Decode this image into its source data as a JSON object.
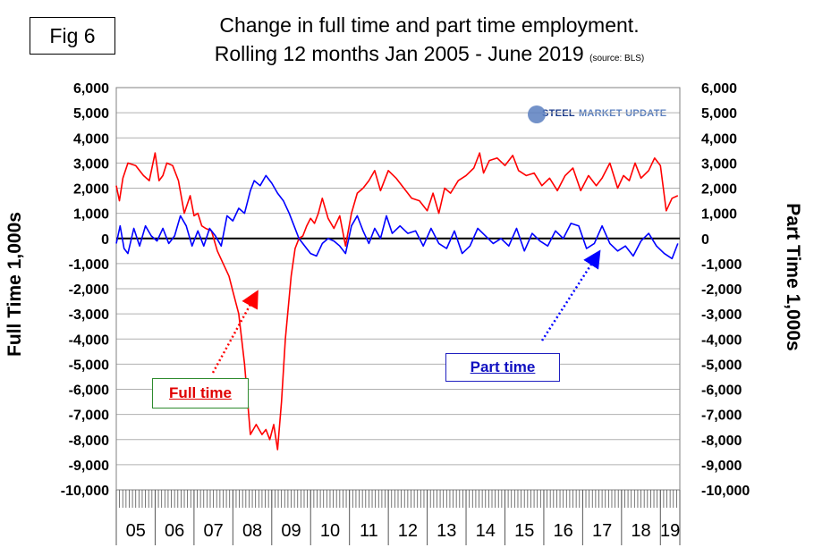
{
  "figure_label": "Fig 6",
  "title_line1": "Change in full time and part time employment.",
  "title_line2": "Rolling 12 months Jan 2005 - June 2019",
  "source_note": "(source: BLS)",
  "logo_text": {
    "steel": "STEEL",
    "market_update": "MARKET UPDATE"
  },
  "colors": {
    "full_time": "#ff0000",
    "part_time": "#0000ff",
    "grid": "#b0b0b0",
    "zero_line": "#000000"
  },
  "annotations": {
    "full_time": "Full time",
    "part_time": "Part time"
  },
  "chart_data": {
    "type": "line",
    "title": "Change in full time and part time employment. Rolling 12 months Jan 2005 - June 2019",
    "ylabel_left": "Full Time 1,000s",
    "ylabel_right": "Part Time 1,000s",
    "ylim": [
      -10000,
      6000
    ],
    "yticks": [
      6000,
      5000,
      4000,
      3000,
      2000,
      1000,
      0,
      -1000,
      -2000,
      -3000,
      -4000,
      -5000,
      -6000,
      -7000,
      -8000,
      -9000,
      -10000
    ],
    "ytick_labels": [
      "6,000",
      "5,000",
      "4,000",
      "3,000",
      "2,000",
      "1,000",
      "0",
      "-1,000",
      "-2,000",
      "-3,000",
      "-4,000",
      "-5,000",
      "-6,000",
      "-7,000",
      "-8,000",
      "-9,000",
      "-10,000"
    ],
    "x_range": [
      "2005-01",
      "2019-06"
    ],
    "year_labels": [
      "05",
      "06",
      "07",
      "08",
      "09",
      "10",
      "11",
      "12",
      "13",
      "14",
      "15",
      "16",
      "17",
      "18",
      "19"
    ],
    "grid": "horizontal",
    "series": [
      {
        "name": "Full time",
        "x": [
          2005.0,
          2005.08,
          2005.17,
          2005.3,
          2005.5,
          2005.7,
          2005.85,
          2006.0,
          2006.1,
          2006.2,
          2006.3,
          2006.45,
          2006.6,
          2006.75,
          2006.9,
          2007.0,
          2007.1,
          2007.2,
          2007.3,
          2007.45,
          2007.6,
          2007.75,
          2007.9,
          2008.0,
          2008.15,
          2008.3,
          2008.45,
          2008.6,
          2008.75,
          2008.85,
          2008.95,
          2009.05,
          2009.15,
          2009.25,
          2009.35,
          2009.5,
          2009.6,
          2009.7,
          2009.8,
          2009.9,
          2010.0,
          2010.1,
          2010.2,
          2010.3,
          2010.45,
          2010.6,
          2010.75,
          2010.9,
          2011.05,
          2011.2,
          2011.35,
          2011.5,
          2011.65,
          2011.8,
          2012.0,
          2012.2,
          2012.4,
          2012.6,
          2012.8,
          2013.0,
          2013.15,
          2013.3,
          2013.45,
          2013.6,
          2013.8,
          2014.0,
          2014.2,
          2014.35,
          2014.45,
          2014.6,
          2014.8,
          2015.0,
          2015.2,
          2015.35,
          2015.55,
          2015.75,
          2015.95,
          2016.15,
          2016.35,
          2016.55,
          2016.75,
          2016.95,
          2017.15,
          2017.35,
          2017.5,
          2017.7,
          2017.9,
          2018.05,
          2018.2,
          2018.35,
          2018.5,
          2018.7,
          2018.85,
          2019.0,
          2019.15,
          2019.3,
          2019.45
        ],
        "values": [
          2100,
          1500,
          2400,
          3000,
          2900,
          2500,
          2300,
          3400,
          2300,
          2500,
          3000,
          2900,
          2300,
          1000,
          1700,
          900,
          1000,
          500,
          400,
          300,
          -500,
          -1000,
          -1500,
          -2100,
          -3000,
          -5000,
          -7800,
          -7400,
          -7800,
          -7600,
          -8000,
          -7400,
          -8400,
          -6500,
          -4000,
          -1500,
          -400,
          0,
          100,
          500,
          800,
          600,
          1000,
          1600,
          800,
          400,
          900,
          -300,
          1000,
          1800,
          2000,
          2300,
          2700,
          1900,
          2700,
          2400,
          2000,
          1600,
          1500,
          1100,
          1800,
          1000,
          2000,
          1800,
          2300,
          2500,
          2800,
          3400,
          2600,
          3100,
          3200,
          2900,
          3300,
          2700,
          2500,
          2600,
          2100,
          2400,
          1900,
          2500,
          2800,
          1900,
          2500,
          2100,
          2400,
          3000,
          2000,
          2500,
          2300,
          3000,
          2400,
          2700,
          3200,
          2900,
          1100,
          1600,
          1700
        ]
      },
      {
        "name": "Part time",
        "x": [
          2005.0,
          2005.1,
          2005.2,
          2005.3,
          2005.45,
          2005.6,
          2005.75,
          2005.9,
          2006.05,
          2006.2,
          2006.35,
          2006.5,
          2006.65,
          2006.8,
          2006.95,
          2007.1,
          2007.25,
          2007.4,
          2007.55,
          2007.7,
          2007.85,
          2008.0,
          2008.15,
          2008.3,
          2008.45,
          2008.55,
          2008.7,
          2008.85,
          2009.0,
          2009.15,
          2009.3,
          2009.45,
          2009.55,
          2009.7,
          2009.85,
          2010.0,
          2010.15,
          2010.3,
          2010.45,
          2010.6,
          2010.75,
          2010.9,
          2011.05,
          2011.2,
          2011.35,
          2011.5,
          2011.65,
          2011.8,
          2011.95,
          2012.1,
          2012.3,
          2012.5,
          2012.7,
          2012.9,
          2013.1,
          2013.3,
          2013.5,
          2013.7,
          2013.9,
          2014.1,
          2014.3,
          2014.5,
          2014.7,
          2014.9,
          2015.1,
          2015.3,
          2015.5,
          2015.7,
          2015.9,
          2016.1,
          2016.3,
          2016.5,
          2016.7,
          2016.9,
          2017.1,
          2017.3,
          2017.5,
          2017.7,
          2017.9,
          2018.1,
          2018.3,
          2018.5,
          2018.7,
          2018.9,
          2019.1,
          2019.3,
          2019.45
        ],
        "values": [
          -200,
          500,
          -400,
          -600,
          400,
          -300,
          500,
          100,
          -100,
          400,
          -200,
          100,
          900,
          500,
          -300,
          300,
          -300,
          400,
          100,
          -300,
          900,
          700,
          1200,
          1000,
          1900,
          2300,
          2100,
          2500,
          2200,
          1800,
          1500,
          1000,
          600,
          0,
          -300,
          -600,
          -700,
          -200,
          0,
          -100,
          -300,
          -600,
          500,
          900,
          300,
          -200,
          400,
          0,
          900,
          200,
          500,
          200,
          300,
          -300,
          400,
          -200,
          -400,
          300,
          -600,
          -300,
          400,
          100,
          -200,
          0,
          -300,
          400,
          -500,
          200,
          -100,
          -300,
          300,
          0,
          600,
          500,
          -400,
          -200,
          500,
          -200,
          -500,
          -300,
          -700,
          -100,
          200,
          -300,
          -600,
          -800,
          -200
        ]
      }
    ]
  }
}
